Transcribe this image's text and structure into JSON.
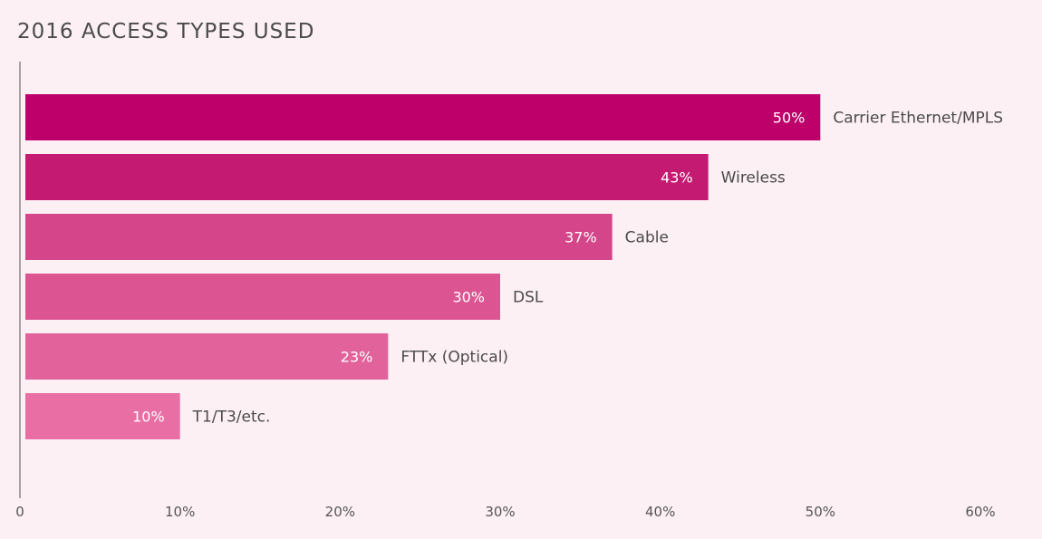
{
  "chart_data": {
    "type": "bar",
    "orientation": "horizontal",
    "title": "2016 ACCESS TYPES USED",
    "categories": [
      "Carrier Ethernet/MPLS",
      "Wireless",
      "Cable",
      "DSL",
      "FTTx (Optical)",
      "T1/T3/etc."
    ],
    "values": [
      50,
      43,
      37,
      30,
      23,
      10
    ],
    "value_labels": [
      "50%",
      "43%",
      "37%",
      "30%",
      "23%",
      "10%"
    ],
    "bar_colors": [
      "#be006a",
      "#c51a72",
      "#d4458a",
      "#dc5592",
      "#e2639b",
      "#e96ea4"
    ],
    "xlim": [
      0,
      60
    ],
    "x_ticks": [
      0,
      10,
      20,
      30,
      40,
      50,
      60
    ],
    "x_tick_labels": [
      "0",
      "10%",
      "20%",
      "30%",
      "40%",
      "50%",
      "60%"
    ],
    "xlabel": "",
    "ylabel": "",
    "grid": false,
    "legend": "none"
  }
}
